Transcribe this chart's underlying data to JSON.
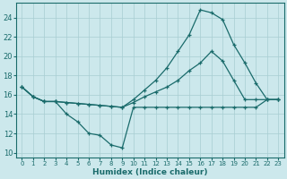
{
  "xlabel": "Humidex (Indice chaleur)",
  "background_color": "#cce8ec",
  "grid_color": "#a8cdd2",
  "line_color": "#1a6b6b",
  "xlim": [
    -0.5,
    23.5
  ],
  "ylim": [
    9.5,
    25.5
  ],
  "xticks": [
    0,
    1,
    2,
    3,
    4,
    5,
    6,
    7,
    8,
    9,
    10,
    11,
    12,
    13,
    14,
    15,
    16,
    17,
    18,
    19,
    20,
    21,
    22,
    23
  ],
  "yticks": [
    10,
    12,
    14,
    16,
    18,
    20,
    22,
    24
  ],
  "curve1_x": [
    0,
    1,
    2,
    3,
    4,
    5,
    6,
    7,
    8,
    9,
    10,
    11,
    12,
    13,
    14,
    15,
    16,
    17,
    18,
    19,
    20,
    21,
    22,
    23
  ],
  "curve1_y": [
    16.8,
    15.8,
    15.3,
    15.3,
    14.0,
    13.2,
    12.0,
    11.8,
    10.8,
    10.5,
    14.7,
    14.7,
    14.7,
    14.7,
    14.7,
    14.7,
    14.7,
    14.7,
    14.7,
    14.7,
    14.7,
    14.7,
    15.5,
    15.5
  ],
  "curve2_x": [
    0,
    1,
    2,
    3,
    4,
    5,
    6,
    7,
    8,
    9,
    10,
    11,
    12,
    13,
    14,
    15,
    16,
    17,
    18,
    19,
    20,
    21,
    22,
    23
  ],
  "curve2_y": [
    16.8,
    15.8,
    15.3,
    15.3,
    15.2,
    15.1,
    15.0,
    14.9,
    14.8,
    14.7,
    15.2,
    15.8,
    16.3,
    16.8,
    17.5,
    18.5,
    19.3,
    20.5,
    19.5,
    17.5,
    15.5,
    15.5,
    15.5,
    15.5
  ],
  "curve3_x": [
    0,
    1,
    2,
    3,
    4,
    5,
    6,
    7,
    8,
    9,
    10,
    11,
    12,
    13,
    14,
    15,
    16,
    17,
    18,
    19,
    20,
    21,
    22,
    23
  ],
  "curve3_y": [
    16.8,
    15.8,
    15.3,
    15.3,
    15.2,
    15.1,
    15.0,
    14.9,
    14.8,
    14.7,
    15.5,
    16.5,
    17.5,
    18.8,
    20.5,
    22.2,
    24.8,
    24.5,
    23.8,
    21.2,
    19.3,
    17.2,
    15.5,
    15.5
  ]
}
